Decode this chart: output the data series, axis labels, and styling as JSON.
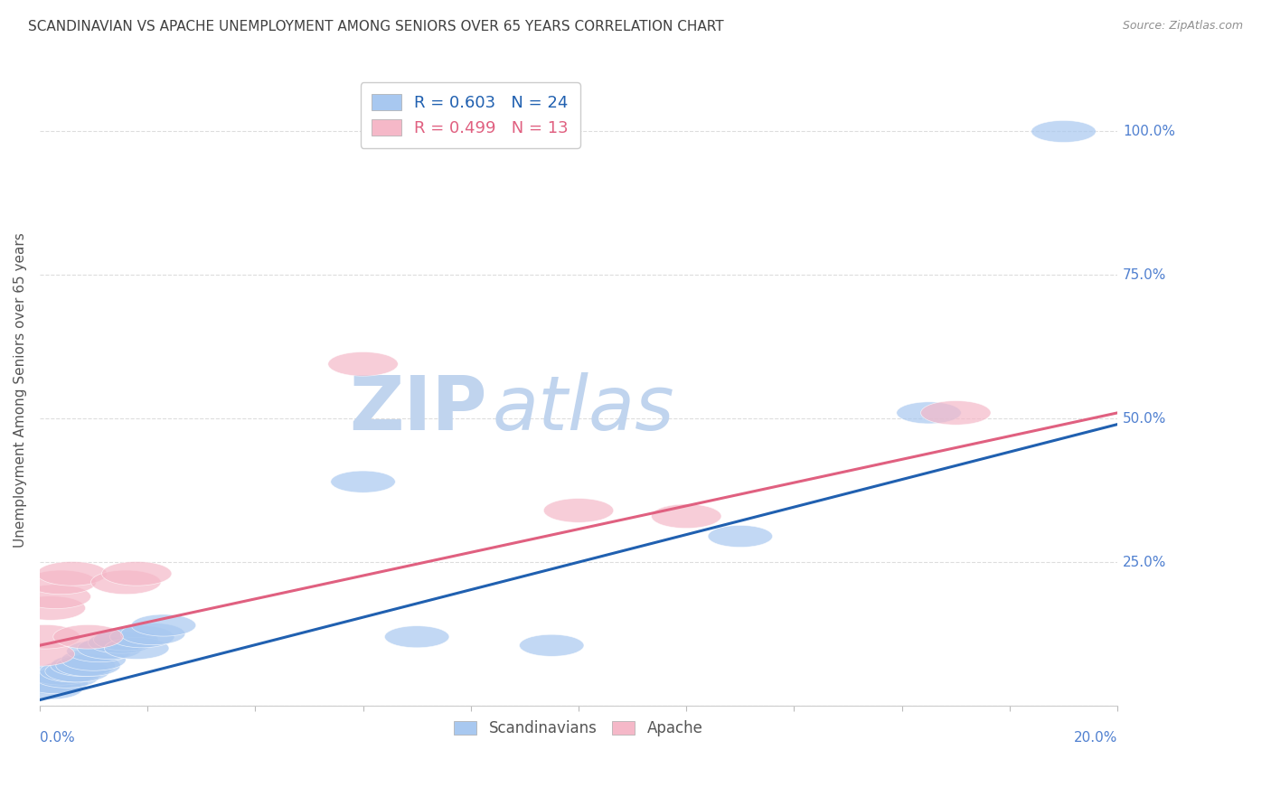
{
  "title": "SCANDINAVIAN VS APACHE UNEMPLOYMENT AMONG SENIORS OVER 65 YEARS CORRELATION CHART",
  "source": "Source: ZipAtlas.com",
  "ylabel": "Unemployment Among Seniors over 65 years",
  "scand_color": "#A8C8F0",
  "apache_color": "#F5B8C8",
  "scand_line_color": "#2060B0",
  "apache_line_color": "#E06080",
  "watermark_zip_color": "#C8D8F0",
  "watermark_atlas_color": "#C8D8E8",
  "title_color": "#404040",
  "source_color": "#909090",
  "tick_color": "#5080D0",
  "grid_color": "#DDDDDD",
  "background_color": "#FFFFFF",
  "scand_x": [
    0.0,
    0.002,
    0.003,
    0.004,
    0.005,
    0.006,
    0.007,
    0.008,
    0.009,
    0.01,
    0.011,
    0.013,
    0.015,
    0.016,
    0.018,
    0.019,
    0.021,
    0.023,
    0.06,
    0.07,
    0.095,
    0.13,
    0.165,
    0.19
  ],
  "scand_y": [
    0.04,
    0.03,
    0.04,
    0.055,
    0.05,
    0.06,
    0.06,
    0.07,
    0.07,
    0.08,
    0.095,
    0.1,
    0.11,
    0.115,
    0.1,
    0.12,
    0.125,
    0.14,
    0.39,
    0.12,
    0.105,
    0.295,
    0.51,
    1.0
  ],
  "apache_x": [
    0.0,
    0.001,
    0.002,
    0.003,
    0.004,
    0.006,
    0.009,
    0.016,
    0.018,
    0.06,
    0.1,
    0.12,
    0.17
  ],
  "apache_y": [
    0.09,
    0.12,
    0.17,
    0.19,
    0.215,
    0.23,
    0.12,
    0.215,
    0.23,
    0.595,
    0.34,
    0.33,
    0.51
  ],
  "scand_line_x0": 0.0,
  "scand_line_y0": 0.01,
  "scand_line_x1": 0.2,
  "scand_line_y1": 0.49,
  "apache_line_x0": 0.0,
  "apache_line_y0": 0.105,
  "apache_line_x1": 0.2,
  "apache_line_y1": 0.51,
  "xlim": [
    0.0,
    0.2
  ],
  "ylim": [
    0.0,
    1.1
  ],
  "xtick_positions": [
    0.0,
    0.02,
    0.04,
    0.06,
    0.08,
    0.1,
    0.12,
    0.14,
    0.16,
    0.18,
    0.2
  ],
  "ytick_positions": [
    0.0,
    0.25,
    0.5,
    0.75,
    1.0
  ],
  "ytick_labels": [
    "",
    "25.0%",
    "50.0%",
    "75.0%",
    "100.0%"
  ]
}
